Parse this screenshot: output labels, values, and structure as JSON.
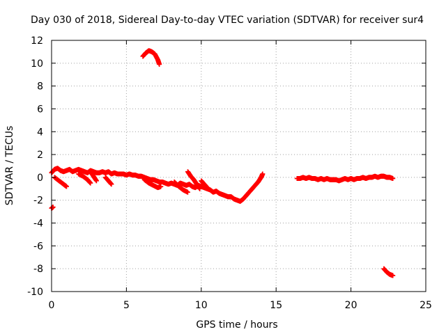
{
  "chart_data": {
    "type": "scatter",
    "title": "Day 030 of 2018, Sidereal Day-to-day VTEC variation (SDTVAR) for receiver sur4",
    "xlabel": "GPS time / hours",
    "ylabel": "SDTVAR / TECUs",
    "xlim": [
      0,
      25
    ],
    "ylim": [
      -10,
      12
    ],
    "xticks": [
      0,
      5,
      10,
      15,
      20,
      25
    ],
    "yticks": [
      -10,
      -8,
      -6,
      -4,
      -2,
      0,
      2,
      4,
      6,
      8,
      10,
      12
    ],
    "grid": true,
    "series": [
      {
        "name": "sur4",
        "color": "#ff0000",
        "marker": "+",
        "segments": [
          {
            "x": [
              0.0,
              0.1
            ],
            "y": [
              -2.7,
              -2.6
            ]
          },
          {
            "x": [
              0.0,
              0.2,
              0.4,
              0.6,
              0.8,
              1.0,
              1.2,
              1.4,
              1.6,
              1.8,
              2.0,
              2.2,
              2.4,
              2.6,
              2.8,
              3.0,
              3.2,
              3.4,
              3.6,
              3.8,
              4.0,
              4.2,
              4.4,
              4.6,
              4.8,
              5.0,
              5.2,
              5.4,
              5.6,
              5.8,
              6.0,
              6.2,
              6.4,
              6.6,
              6.8,
              7.0,
              7.2,
              7.4,
              7.6,
              7.8,
              8.0,
              8.2,
              8.4,
              8.6,
              8.8,
              9.0,
              9.2,
              9.4,
              9.6,
              9.8,
              10.0,
              10.2,
              10.4,
              10.6,
              10.8,
              11.0,
              11.2,
              11.4,
              11.6,
              11.8,
              12.0,
              12.2,
              12.4,
              12.6,
              12.8,
              13.0,
              13.2,
              13.4,
              13.6,
              13.8,
              14.0,
              14.1
            ],
            "y": [
              0.4,
              0.7,
              0.8,
              0.6,
              0.5,
              0.6,
              0.7,
              0.5,
              0.6,
              0.7,
              0.6,
              0.5,
              0.4,
              0.6,
              0.5,
              0.4,
              0.4,
              0.5,
              0.4,
              0.5,
              0.3,
              0.4,
              0.3,
              0.3,
              0.3,
              0.2,
              0.3,
              0.2,
              0.2,
              0.1,
              0.1,
              0.0,
              -0.1,
              -0.2,
              -0.2,
              -0.3,
              -0.4,
              -0.4,
              -0.5,
              -0.6,
              -0.5,
              -0.6,
              -0.7,
              -0.5,
              -0.6,
              -0.7,
              -0.6,
              -0.8,
              -0.9,
              -0.7,
              -0.8,
              -0.9,
              -1.0,
              -1.1,
              -1.3,
              -1.2,
              -1.4,
              -1.5,
              -1.6,
              -1.7,
              -1.7,
              -1.9,
              -2.0,
              -2.1,
              -1.9,
              -1.6,
              -1.3,
              -1.0,
              -0.7,
              -0.4,
              0.0,
              0.3
            ]
          },
          {
            "x": [
              0.2,
              0.5,
              0.8,
              1.0
            ],
            "y": [
              0.0,
              -0.3,
              -0.6,
              -0.8
            ]
          },
          {
            "x": [
              1.8,
              2.1,
              2.4,
              2.6
            ],
            "y": [
              0.3,
              0.1,
              -0.2,
              -0.5
            ]
          },
          {
            "x": [
              2.6,
              2.8,
              3.0
            ],
            "y": [
              0.5,
              0.1,
              -0.3
            ]
          },
          {
            "x": [
              3.6,
              3.8,
              4.0
            ],
            "y": [
              0.0,
              -0.3,
              -0.6
            ]
          },
          {
            "x": [
              6.2,
              6.5,
              6.8,
              7.1,
              7.3
            ],
            "y": [
              -0.2,
              -0.5,
              -0.7,
              -0.9,
              -0.8
            ]
          },
          {
            "x": [
              8.2,
              8.5,
              8.8,
              9.1
            ],
            "y": [
              -0.4,
              -0.8,
              -1.1,
              -1.3
            ]
          },
          {
            "x": [
              9.1,
              9.3,
              9.5,
              9.7,
              9.9
            ],
            "y": [
              0.5,
              0.1,
              -0.2,
              -0.6,
              -1.0
            ]
          },
          {
            "x": [
              10.0,
              10.2,
              10.4
            ],
            "y": [
              -0.3,
              -0.6,
              -0.9
            ]
          },
          {
            "x": [
              6.1,
              6.3,
              6.5,
              6.7,
              6.9,
              7.1,
              7.2
            ],
            "y": [
              10.6,
              10.9,
              11.1,
              11.0,
              10.8,
              10.3,
              9.9
            ]
          },
          {
            "x": [
              16.4,
              16.6,
              16.8,
              17.0,
              17.2,
              17.4,
              17.6,
              17.8,
              18.0,
              18.2,
              18.4,
              18.6,
              18.8,
              19.0,
              19.2,
              19.4,
              19.6,
              19.8,
              20.0,
              20.2,
              20.4,
              20.6,
              20.8,
              21.0,
              21.2,
              21.4,
              21.6,
              21.8,
              22.0,
              22.2,
              22.4,
              22.6,
              22.8
            ],
            "y": [
              -0.1,
              -0.1,
              0.0,
              -0.1,
              0.0,
              -0.1,
              -0.1,
              -0.2,
              -0.1,
              -0.2,
              -0.1,
              -0.2,
              -0.2,
              -0.2,
              -0.3,
              -0.2,
              -0.1,
              -0.2,
              -0.1,
              -0.2,
              -0.1,
              -0.1,
              0.0,
              -0.1,
              0.0,
              0.0,
              0.1,
              0.0,
              0.1,
              0.1,
              0.0,
              0.0,
              -0.1
            ]
          },
          {
            "x": [
              22.2,
              22.4,
              22.6,
              22.8
            ],
            "y": [
              -8.0,
              -8.3,
              -8.5,
              -8.6
            ]
          }
        ]
      }
    ]
  }
}
